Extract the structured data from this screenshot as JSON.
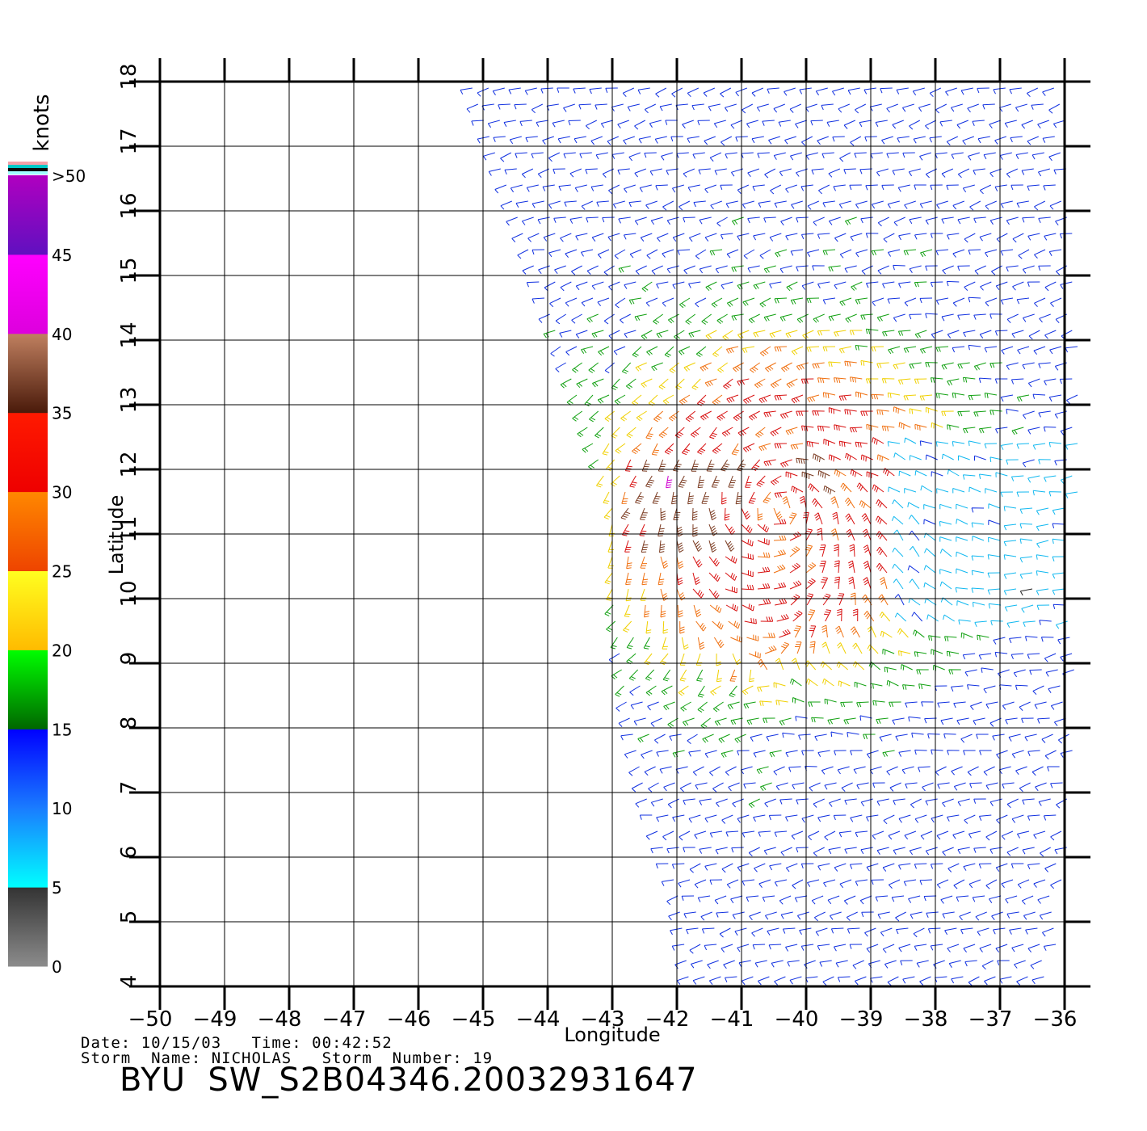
{
  "chart_data": {
    "type": "wind-vector-field",
    "xlabel": "Longitude",
    "ylabel": "Latitude",
    "xlim": [
      -50,
      -36
    ],
    "ylim": [
      4,
      18
    ],
    "x_ticks": [
      -50,
      -49,
      -48,
      -47,
      -46,
      -45,
      -44,
      -43,
      -42,
      -41,
      -40,
      -39,
      -38,
      -37,
      -36
    ],
    "y_ticks": [
      4,
      5,
      6,
      7,
      8,
      9,
      10,
      11,
      12,
      13,
      14,
      15,
      16,
      17,
      18
    ],
    "x_tick_labels": [
      "-50",
      "-49",
      "-48",
      "-47",
      "-46",
      "-45",
      "-44",
      "-43",
      "-42",
      "-41",
      "-40",
      "-39",
      "-38",
      "-37",
      "-36"
    ],
    "y_tick_labels": [
      "4",
      "5",
      "6",
      "7",
      "8",
      "9",
      "10",
      "11",
      "12",
      "13",
      "14",
      "15",
      "16",
      "17",
      "18"
    ],
    "grid": true,
    "colorbar": {
      "title": "knots",
      "position": "left",
      "bins": [
        {
          "min": 0,
          "max": 5,
          "color_top": "#333333",
          "color_bottom": "#8c8c8c"
        },
        {
          "min": 5,
          "max": 10,
          "color_top": "#1a7cff",
          "color_bottom": "#00ffff"
        },
        {
          "min": 10,
          "max": 15,
          "color_top": "#0000ff",
          "color_bottom": "#1a7cff"
        },
        {
          "min": 15,
          "max": 20,
          "color_top": "#00ff00",
          "color_bottom": "#006600"
        },
        {
          "min": 20,
          "max": 25,
          "color_top": "#ffff20",
          "color_bottom": "#ffbb00"
        },
        {
          "min": 25,
          "max": 30,
          "color_top": "#ff8800",
          "color_bottom": "#ee4400"
        },
        {
          "min": 30,
          "max": 35,
          "color_top": "#ff1a00",
          "color_bottom": "#ee0000"
        },
        {
          "min": 35,
          "max": 40,
          "color_top": "#c08060",
          "color_bottom": "#4a1a0a"
        },
        {
          "min": 40,
          "max": 45,
          "color_top": "#ff00ff",
          "color_bottom": "#dd00dd"
        },
        {
          "min": 45,
          "max": 50,
          "color_top": "#b000c0",
          "color_bottom": "#6010c0"
        }
      ],
      "tick_labels": [
        "0",
        "5",
        "10",
        "15",
        "20",
        "25",
        "30",
        "35",
        "40",
        "45",
        ">50"
      ],
      "top_swatches": [
        "#f4a0a8",
        "#00c8c8",
        "#0a0a0a",
        "#a0ffff"
      ]
    },
    "swath": {
      "left_edge": [
        [
          -45.2,
          18
        ],
        [
          -44.5,
          16
        ],
        [
          -44.0,
          14.5
        ],
        [
          -43.5,
          13
        ],
        [
          -43.0,
          11.5
        ],
        [
          -43.0,
          10
        ],
        [
          -42.8,
          8.5
        ],
        [
          -42.5,
          7
        ],
        [
          -42.0,
          5.5
        ],
        [
          -41.8,
          4
        ]
      ],
      "right_edge": [
        [
          -36.0,
          18
        ],
        [
          -35.8,
          14
        ],
        [
          -35.8,
          10
        ],
        [
          -35.9,
          6
        ],
        [
          -36.2,
          4
        ]
      ]
    },
    "storm_center": {
      "lon": -40.4,
      "lat": 11.4
    },
    "wind_field_notes": "Cyclonic circulation with strongest winds (30-40 knots) in a band along 11-12N between -42 and -40; 20-30 knots around 8-13N; 10-15 knots elsewhere; low winds (5-10 knots) east of -38.5 near 10-12N."
  },
  "info": {
    "date_label": "Date:",
    "date": "10/15/03",
    "time_label": "Time:",
    "time": "00:42:52",
    "storm_name_label": "Storm  Name:",
    "storm_name": "NICHOLAS",
    "storm_number_label": "Storm  Number:",
    "storm_number": "19"
  },
  "source_title": "BYU  SW_S2B04346.20032931647"
}
